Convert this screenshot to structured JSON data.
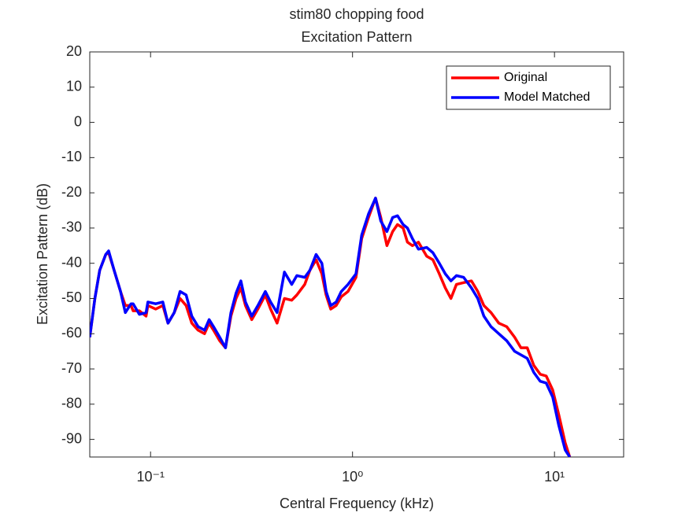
{
  "chart_data": {
    "type": "line",
    "title": [
      "stim80 chopping food",
      "Excitation Pattern"
    ],
    "x_label": "Central Frequency (kHz)",
    "y_label": "Excitation Pattern (dB)",
    "x_scale": "log",
    "xlim": [
      0.05,
      22
    ],
    "ylim": [
      -95,
      20
    ],
    "xticks": [
      {
        "value": 0.1,
        "label": "10⁻¹"
      },
      {
        "value": 1,
        "label": "10⁰"
      },
      {
        "value": 10,
        "label": "10¹"
      }
    ],
    "yticks": [
      -90,
      -80,
      -70,
      -60,
      -50,
      -40,
      -30,
      -20,
      -10,
      0,
      10,
      20
    ],
    "legend": "northeast",
    "x": [
      0.05,
      0.053,
      0.056,
      0.06,
      0.062,
      0.066,
      0.071,
      0.075,
      0.08,
      0.082,
      0.088,
      0.095,
      0.097,
      0.106,
      0.115,
      0.122,
      0.131,
      0.14,
      0.15,
      0.16,
      0.172,
      0.185,
      0.195,
      0.205,
      0.22,
      0.235,
      0.25,
      0.265,
      0.28,
      0.295,
      0.317,
      0.34,
      0.37,
      0.393,
      0.423,
      0.46,
      0.5,
      0.53,
      0.58,
      0.615,
      0.66,
      0.705,
      0.74,
      0.78,
      0.83,
      0.88,
      0.95,
      1.04,
      1.11,
      1.2,
      1.3,
      1.38,
      1.48,
      1.58,
      1.67,
      1.78,
      1.87,
      1.98,
      2.12,
      2.33,
      2.5,
      2.69,
      2.88,
      3.07,
      3.27,
      3.55,
      3.88,
      4.17,
      4.47,
      4.85,
      5.3,
      5.8,
      6.35,
      6.82,
      7.33,
      7.9,
      8.5,
      9.1,
      9.8,
      10.5,
      11.3,
      11.9
    ],
    "series": [
      {
        "name": "Original",
        "color": "#ff0000",
        "values": [
          -61,
          -50,
          -42,
          -37.5,
          -37,
          -42,
          -48,
          -52,
          -52,
          -53.5,
          -53.5,
          -55,
          -52,
          -53,
          -52,
          -57,
          -54,
          -50,
          -52,
          -57,
          -59,
          -60,
          -57,
          -59,
          -62,
          -64,
          -55,
          -50,
          -47,
          -52,
          -56,
          -53,
          -49,
          -53,
          -57,
          -50,
          -50.5,
          -49,
          -46,
          -42,
          -39,
          -43,
          -49,
          -53,
          -52,
          -49.5,
          -48,
          -44,
          -33,
          -27,
          -21.5,
          -27,
          -35,
          -31,
          -29,
          -30,
          -34,
          -35,
          -34,
          -38,
          -39,
          -43,
          -47,
          -50,
          -46,
          -45.5,
          -45,
          -48,
          -52,
          -54,
          -57,
          -58,
          -61,
          -64,
          -64,
          -69,
          -71.5,
          -72,
          -76,
          -83,
          -91,
          -95
        ]
      },
      {
        "name": "Model Matched",
        "color": "#0000ff",
        "values": [
          -61,
          -50,
          -42,
          -37.5,
          -36.5,
          -42,
          -48,
          -54,
          -51.5,
          -51.5,
          -54.5,
          -54,
          -51,
          -51.5,
          -51,
          -57,
          -54,
          -48,
          -49,
          -55,
          -58,
          -59,
          -56,
          -58,
          -61,
          -64,
          -54,
          -48.5,
          -45,
          -51,
          -55,
          -52,
          -48,
          -51,
          -54,
          -42.5,
          -46,
          -43.5,
          -44,
          -42,
          -37.5,
          -40,
          -48,
          -52,
          -51,
          -48,
          -46,
          -43,
          -32,
          -26,
          -21.5,
          -28,
          -31,
          -27,
          -26.5,
          -29,
          -30,
          -33,
          -36,
          -35.5,
          -37,
          -40,
          -43,
          -45,
          -43.5,
          -44,
          -47,
          -50,
          -55,
          -58,
          -60,
          -62,
          -65,
          -66,
          -67,
          -71,
          -73.5,
          -74,
          -78,
          -86,
          -93,
          -95
        ]
      }
    ]
  }
}
